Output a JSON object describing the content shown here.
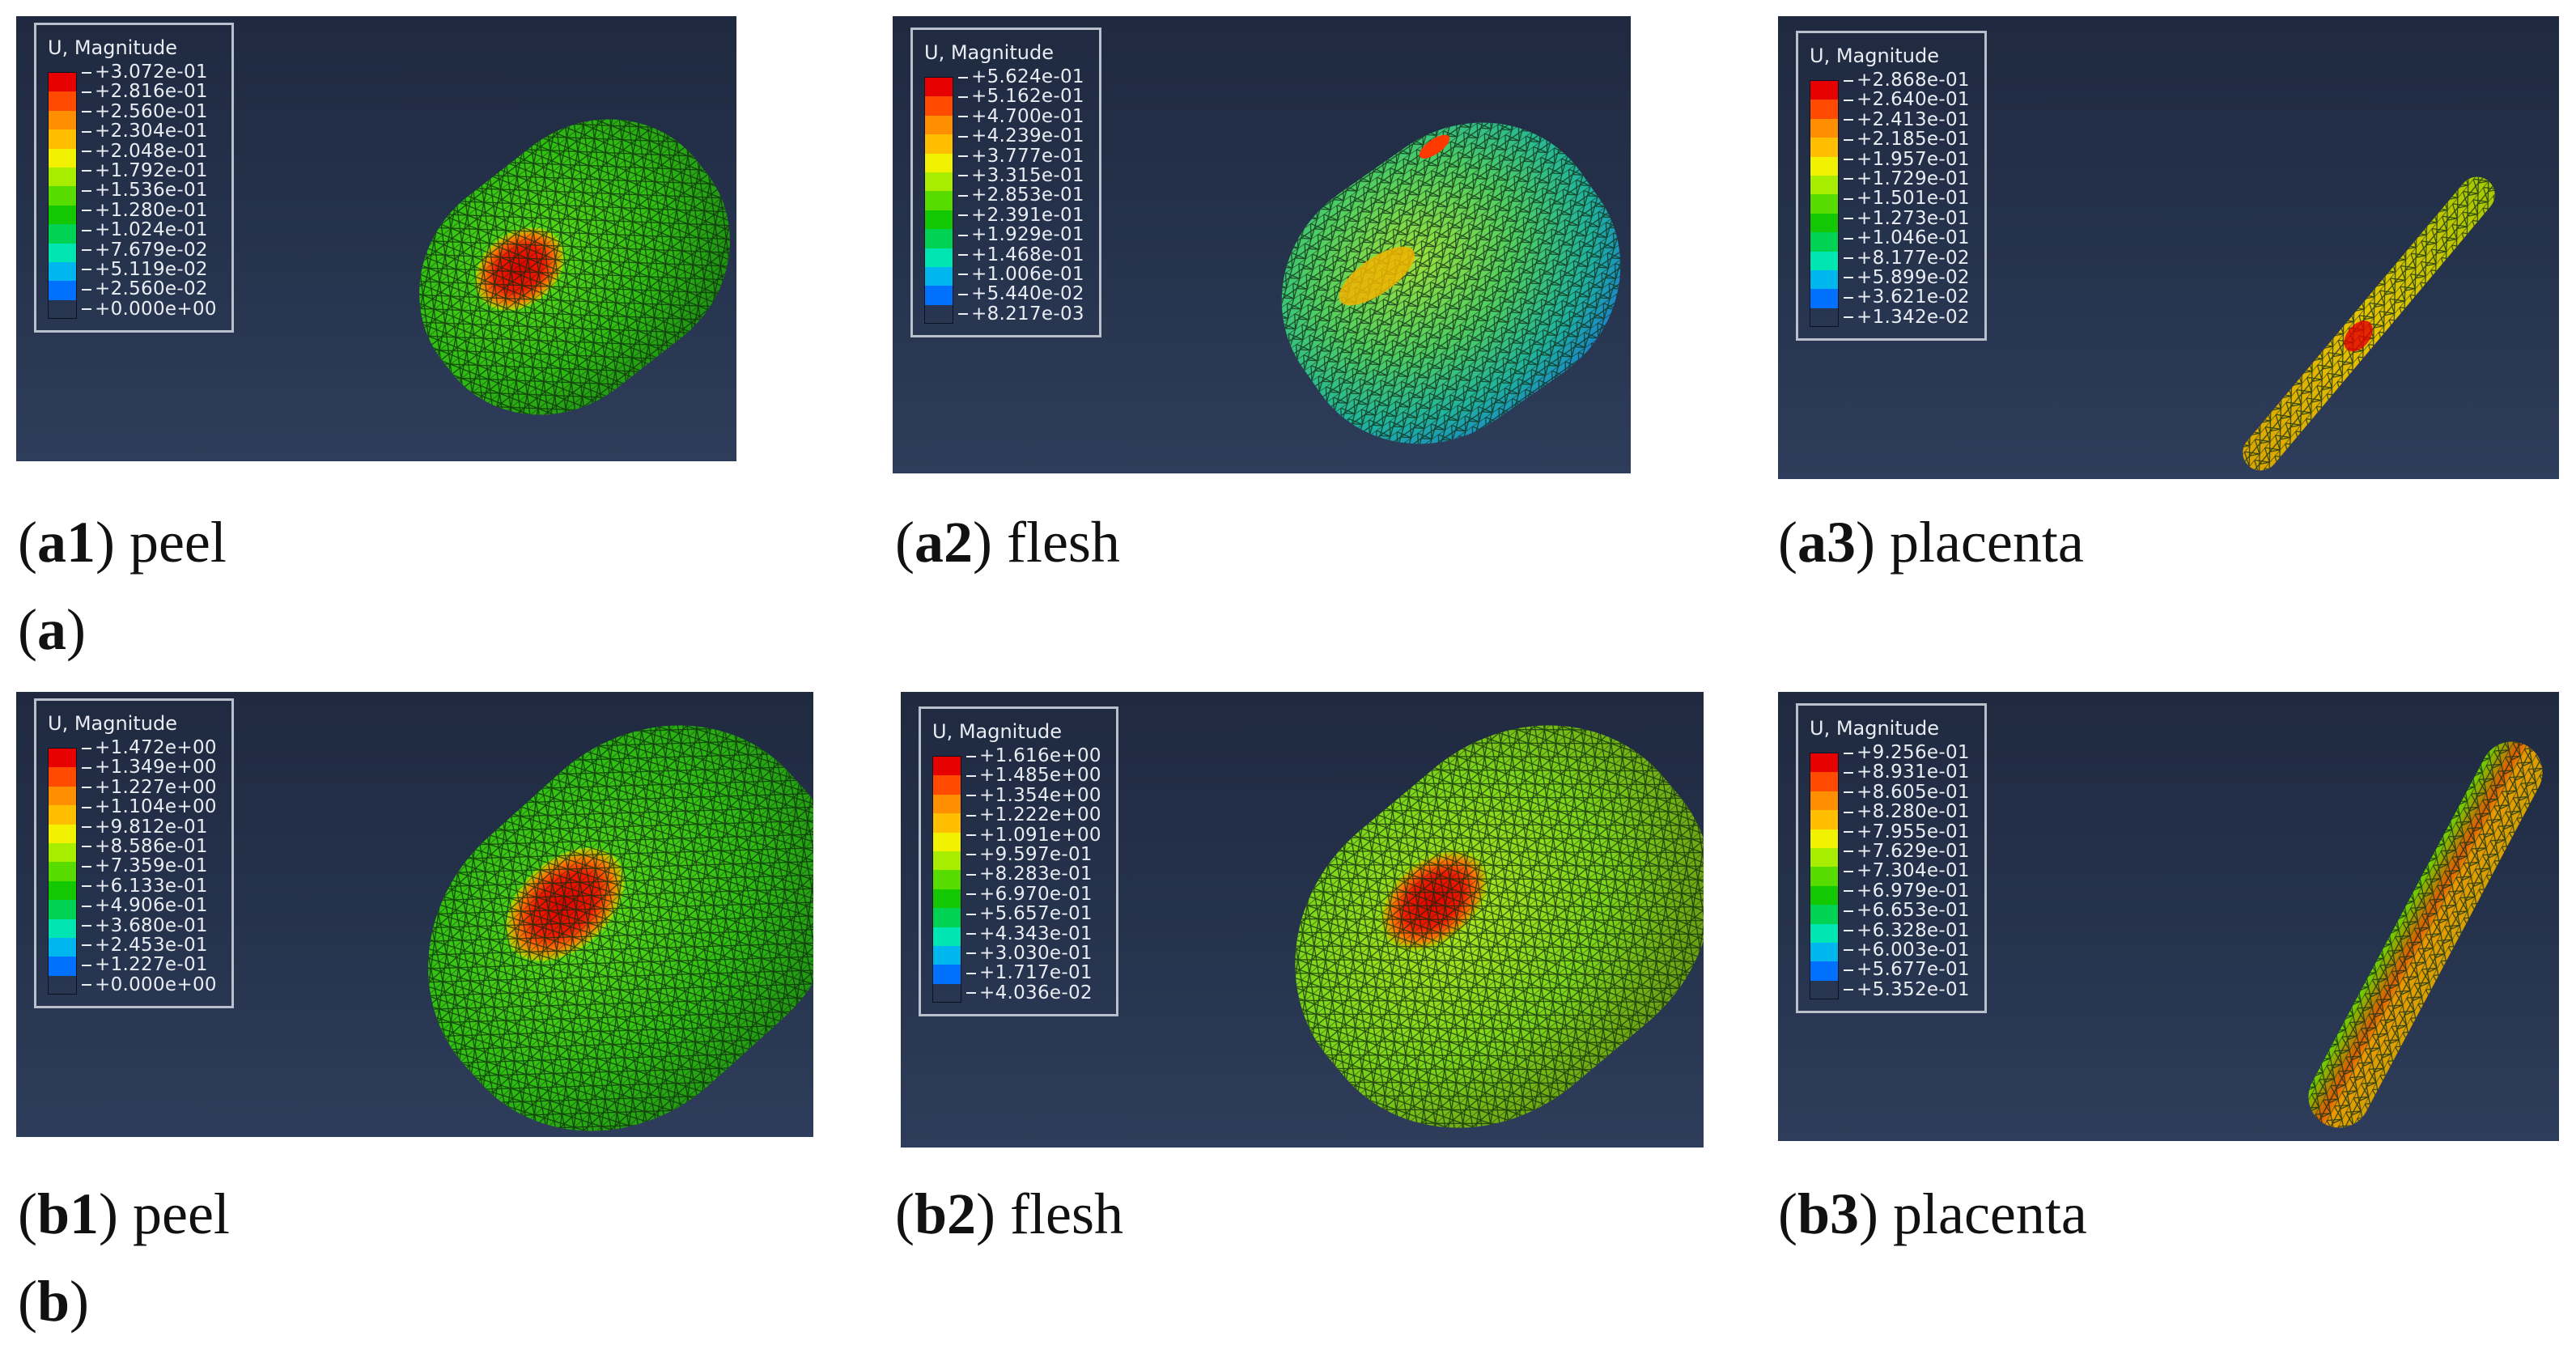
{
  "legend_title": "U, Magnitude",
  "colors": {
    "scale": [
      "#e60000",
      "#ff4a00",
      "#ff8f00",
      "#ffbe00",
      "#f2f200",
      "#a8ec00",
      "#58dc00",
      "#13c800",
      "#00d354",
      "#00e6b2",
      "#00b6ee",
      "#0070ff",
      "#1932ff",
      "#0000ee"
    ],
    "panel_bg": "#26334d"
  },
  "panels": [
    {
      "id": "a1",
      "tag": "a1",
      "label": "peel",
      "values": [
        "+3.072e-01",
        "+2.816e-01",
        "+2.560e-01",
        "+2.304e-01",
        "+2.048e-01",
        "+1.792e-01",
        "+1.536e-01",
        "+1.280e-01",
        "+1.024e-01",
        "+7.679e-02",
        "+5.119e-02",
        "+2.560e-02",
        "+0.000e+00"
      ]
    },
    {
      "id": "a2",
      "tag": "a2",
      "label": "flesh",
      "values": [
        "+5.624e-01",
        "+5.162e-01",
        "+4.700e-01",
        "+4.239e-01",
        "+3.777e-01",
        "+3.315e-01",
        "+2.853e-01",
        "+2.391e-01",
        "+1.929e-01",
        "+1.468e-01",
        "+1.006e-01",
        "+5.440e-02",
        "+8.217e-03"
      ]
    },
    {
      "id": "a3",
      "tag": "a3",
      "label": "placenta",
      "values": [
        "+2.868e-01",
        "+2.640e-01",
        "+2.413e-01",
        "+2.185e-01",
        "+1.957e-01",
        "+1.729e-01",
        "+1.501e-01",
        "+1.273e-01",
        "+1.046e-01",
        "+8.177e-02",
        "+5.899e-02",
        "+3.621e-02",
        "+1.342e-02"
      ]
    },
    {
      "id": "b1",
      "tag": "b1",
      "label": "peel",
      "values": [
        "+1.472e+00",
        "+1.349e+00",
        "+1.227e+00",
        "+1.104e+00",
        "+9.812e-01",
        "+8.586e-01",
        "+7.359e-01",
        "+6.133e-01",
        "+4.906e-01",
        "+3.680e-01",
        "+2.453e-01",
        "+1.227e-01",
        "+0.000e+00"
      ]
    },
    {
      "id": "b2",
      "tag": "b2",
      "label": "flesh",
      "values": [
        "+1.616e+00",
        "+1.485e+00",
        "+1.354e+00",
        "+1.222e+00",
        "+1.091e+00",
        "+9.597e-01",
        "+8.283e-01",
        "+6.970e-01",
        "+5.657e-01",
        "+4.343e-01",
        "+3.030e-01",
        "+1.717e-01",
        "+4.036e-02"
      ]
    },
    {
      "id": "b3",
      "tag": "b3",
      "label": "placenta",
      "values": [
        "+9.256e-01",
        "+8.931e-01",
        "+8.605e-01",
        "+8.280e-01",
        "+7.955e-01",
        "+7.629e-01",
        "+7.304e-01",
        "+6.979e-01",
        "+6.653e-01",
        "+6.328e-01",
        "+6.003e-01",
        "+5.677e-01",
        "+5.352e-01"
      ]
    }
  ],
  "groups": [
    {
      "id": "a",
      "tag": "a"
    },
    {
      "id": "b",
      "tag": "b"
    }
  ]
}
